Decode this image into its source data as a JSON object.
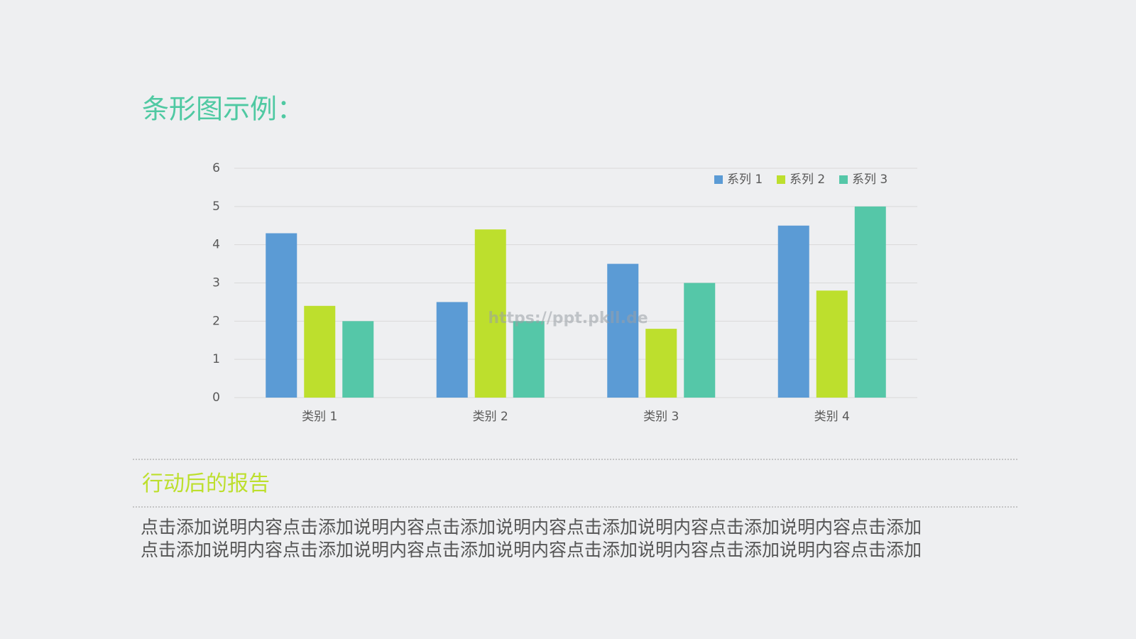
{
  "chart_data": {
    "type": "bar",
    "title": "条形图示例：",
    "categories": [
      "类别 1",
      "类别 2",
      "类别 3",
      "类别 4"
    ],
    "series": [
      {
        "name": "系列 1",
        "color": "#5b9bd5",
        "values": [
          4.3,
          2.5,
          3.5,
          4.5
        ]
      },
      {
        "name": "系列 2",
        "color": "#bddf2d",
        "values": [
          2.4,
          4.4,
          1.8,
          2.8
        ]
      },
      {
        "name": "系列 3",
        "color": "#55c7a8",
        "values": [
          2,
          2,
          3,
          5
        ]
      }
    ],
    "ylim": [
      0,
      6
    ],
    "yticks": [
      0,
      1,
      2,
      3,
      4,
      5,
      6
    ],
    "grid": true,
    "legend": "top-right"
  },
  "watermark": "https://ppt.pkll.de",
  "report": {
    "heading": "行动后的报告",
    "body": [
      "点击添加说明内容点击添加说明内容点击添加说明内容点击添加说明内容点击添加说明内容点击添加",
      "点击添加说明内容点击添加说明内容点击添加说明内容点击添加说明内容点击添加说明内容点击添加"
    ]
  }
}
